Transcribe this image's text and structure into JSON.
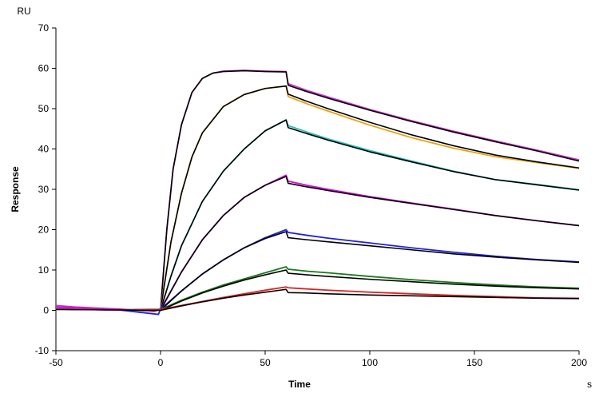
{
  "chart_data": {
    "type": "line",
    "title": "",
    "xlabel": "Time",
    "ylabel": "Response",
    "x_unit": "s",
    "y_unit": "RU",
    "xlim": [
      -50,
      200
    ],
    "ylim": [
      -10,
      70
    ],
    "xticks": [
      -50,
      0,
      50,
      100,
      150,
      200
    ],
    "yticks": [
      -10,
      0,
      10,
      20,
      30,
      40,
      50,
      60,
      70
    ],
    "grid": false,
    "legend": "none",
    "injection_start": 0,
    "injection_end": 60,
    "series": [
      {
        "color": "#cc33cc",
        "x": [
          -50,
          -40,
          -20,
          -10,
          -3,
          0,
          3,
          6,
          10,
          15,
          20,
          25,
          30,
          40,
          50,
          60,
          61,
          70,
          80,
          100,
          120,
          140,
          160,
          180,
          200
        ],
        "y": [
          1.2,
          0.8,
          0.3,
          0.1,
          -0.3,
          0.5,
          20,
          35,
          46,
          54,
          57.5,
          58.8,
          59.3,
          59.5,
          59.3,
          59.2,
          56.2,
          54.5,
          52.9,
          49.8,
          47,
          44.4,
          42,
          39.7,
          37.3
        ]
      },
      {
        "color": "#000000",
        "x": [
          0,
          3,
          6,
          10,
          15,
          20,
          25,
          30,
          40,
          50,
          60,
          61,
          70,
          80,
          100,
          120,
          140,
          160,
          180,
          200
        ],
        "y": [
          0,
          20,
          35,
          46,
          54,
          57.5,
          58.8,
          59.2,
          59.4,
          59.2,
          59.1,
          55.8,
          54.2,
          52.6,
          49.6,
          46.8,
          44.2,
          41.8,
          39.5,
          37
        ]
      },
      {
        "color": "#e8a317",
        "x": [
          -50,
          -20,
          -3,
          0,
          5,
          10,
          15,
          20,
          30,
          40,
          50,
          60,
          61,
          70,
          80,
          100,
          120,
          140,
          160,
          180,
          200
        ],
        "y": [
          0.5,
          0.2,
          -0.2,
          0.5,
          17,
          29,
          38,
          44,
          50.5,
          53.5,
          55,
          55.6,
          53,
          51.2,
          49.4,
          45.9,
          42.8,
          40.2,
          38.1,
          36.6,
          35.2
        ]
      },
      {
        "color": "#000000",
        "x": [
          0,
          5,
          10,
          15,
          20,
          30,
          40,
          50,
          60,
          61,
          70,
          80,
          100,
          120,
          140,
          160,
          180,
          200
        ],
        "y": [
          0,
          17,
          29,
          38,
          44,
          50.5,
          53.5,
          55,
          55.6,
          53.6,
          51.8,
          50,
          46.6,
          43.5,
          40.8,
          38.5,
          36.8,
          35.3
        ]
      },
      {
        "color": "#20c0c0",
        "x": [
          -50,
          -20,
          0,
          5,
          10,
          20,
          30,
          40,
          50,
          60,
          61,
          70,
          80,
          100,
          120,
          140,
          160,
          180,
          200
        ],
        "y": [
          0.5,
          0.2,
          0.3,
          8.5,
          16,
          27,
          34.5,
          40,
          44.5,
          47.2,
          45.8,
          44.2,
          42.5,
          39.6,
          37,
          34.5,
          32.4,
          31.2,
          29.9
        ]
      },
      {
        "color": "#000000",
        "x": [
          0,
          5,
          10,
          20,
          30,
          40,
          50,
          60,
          61,
          70,
          80,
          100,
          120,
          140,
          160,
          180,
          200
        ],
        "y": [
          0,
          8.5,
          16,
          27,
          34.5,
          40,
          44.5,
          47.2,
          45.3,
          43.8,
          42.2,
          39.3,
          36.8,
          34.4,
          32.4,
          31.1,
          29.8
        ]
      },
      {
        "color": "#e000e0",
        "x": [
          -50,
          -20,
          -3,
          0,
          10,
          20,
          30,
          40,
          50,
          60,
          61,
          70,
          80,
          100,
          120,
          140,
          160,
          180,
          200
        ],
        "y": [
          0.8,
          0.3,
          -0.2,
          0.2,
          9.5,
          17.5,
          23.5,
          28,
          31,
          33.5,
          32,
          31,
          30,
          28.2,
          26.6,
          25.1,
          23.5,
          22.2,
          21
        ]
      },
      {
        "color": "#000000",
        "x": [
          0,
          10,
          20,
          30,
          40,
          50,
          60,
          61,
          70,
          80,
          100,
          120,
          140,
          160,
          180,
          200
        ],
        "y": [
          0,
          9.5,
          17.5,
          23.5,
          28,
          31,
          33.2,
          31.5,
          30.6,
          29.7,
          28,
          26.5,
          25,
          23.5,
          22.2,
          21
        ]
      },
      {
        "color": "#2020e0",
        "x": [
          -50,
          -20,
          -1,
          0,
          10,
          20,
          30,
          40,
          50,
          60,
          61,
          70,
          80,
          100,
          120,
          140,
          160,
          180,
          200
        ],
        "y": [
          0.3,
          0.1,
          -1,
          0.3,
          4.8,
          9,
          12.5,
          15.5,
          18,
          20,
          19.3,
          18.6,
          17.9,
          16.7,
          15.5,
          14.4,
          13.4,
          12.6,
          12
        ]
      },
      {
        "color": "#000000",
        "x": [
          0,
          10,
          20,
          30,
          40,
          50,
          60,
          61,
          70,
          80,
          100,
          120,
          140,
          160,
          180,
          200
        ],
        "y": [
          0,
          4.8,
          9,
          12.5,
          15.5,
          17.8,
          19.5,
          18,
          17.5,
          17,
          16,
          15,
          14,
          13.2,
          12.5,
          11.9
        ]
      },
      {
        "color": "#1a7a1a",
        "x": [
          -50,
          -20,
          0,
          10,
          20,
          30,
          40,
          50,
          60,
          61,
          70,
          80,
          100,
          120,
          140,
          160,
          180,
          200
        ],
        "y": [
          0.3,
          0.1,
          0.2,
          2.5,
          4.5,
          6.3,
          7.8,
          9.3,
          10.8,
          10.2,
          9.7,
          9.3,
          8.4,
          7.6,
          6.9,
          6.3,
          5.8,
          5.5
        ]
      },
      {
        "color": "#000000",
        "x": [
          0,
          10,
          20,
          30,
          40,
          50,
          60,
          61,
          70,
          80,
          100,
          120,
          140,
          160,
          180,
          200
        ],
        "y": [
          0,
          2.3,
          4.3,
          6,
          7.5,
          8.8,
          10,
          9.2,
          8.8,
          8.4,
          7.7,
          7.1,
          6.5,
          6,
          5.6,
          5.3
        ]
      },
      {
        "color": "#e02020",
        "x": [
          -50,
          -20,
          0,
          10,
          20,
          30,
          40,
          50,
          60,
          61,
          70,
          80,
          100,
          120,
          140,
          160,
          180,
          200
        ],
        "y": [
          0.3,
          0.1,
          0.2,
          1.2,
          2.2,
          3.2,
          4.1,
          5,
          5.8,
          5.6,
          5.3,
          5,
          4.5,
          4.1,
          3.7,
          3.4,
          3.1,
          3
        ]
      },
      {
        "color": "#000000",
        "x": [
          0,
          10,
          20,
          30,
          40,
          50,
          60,
          61,
          70,
          80,
          100,
          120,
          140,
          160,
          180,
          200
        ],
        "y": [
          0,
          1.1,
          2.1,
          3,
          3.8,
          4.5,
          5.2,
          4.4,
          4.3,
          4.1,
          3.8,
          3.6,
          3.4,
          3.2,
          3,
          2.9
        ]
      },
      {
        "color": "#000000",
        "x": [
          -50,
          -20,
          -10,
          0
        ],
        "y": [
          0.2,
          0.1,
          0,
          0
        ]
      }
    ]
  }
}
